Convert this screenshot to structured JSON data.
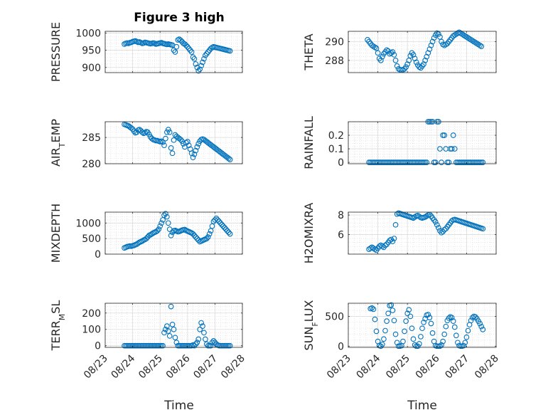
{
  "title": "Figure 3 high",
  "marker_color": "#0072BD",
  "grid": true,
  "x_axis": {
    "label": "Time",
    "range": [
      "08/23",
      "08/28"
    ],
    "ticks": [
      "08/23",
      "08/24",
      "08/25",
      "08/26",
      "08/27",
      "08/28"
    ]
  },
  "chart_data": [
    {
      "type": "scatter",
      "ylabel": "PRESSURE",
      "ylim": [
        885,
        1005
      ],
      "yticks": [
        "900",
        "950",
        "1000"
      ],
      "ytick_values": [
        900,
        950,
        1000
      ],
      "x": [
        0.7,
        0.75,
        0.8,
        0.85,
        0.9,
        0.95,
        1.0,
        1.05,
        1.1,
        1.15,
        1.2,
        1.25,
        1.3,
        1.35,
        1.4,
        1.45,
        1.5,
        1.55,
        1.6,
        1.65,
        1.7,
        1.75,
        1.8,
        1.85,
        1.9,
        1.95,
        2.0,
        2.05,
        2.1,
        2.15,
        2.2,
        2.25,
        2.3,
        2.35,
        2.4,
        2.45,
        2.5,
        2.55,
        2.6,
        2.65,
        2.7,
        2.75,
        2.8,
        2.85,
        2.9,
        2.95,
        3.0,
        3.05,
        3.1,
        3.15,
        3.2,
        3.25,
        3.3,
        3.35,
        3.4,
        3.45,
        3.5,
        3.55,
        3.6,
        3.65,
        3.7,
        3.75,
        3.8,
        3.85,
        3.9,
        3.95,
        4.0,
        4.05,
        4.1,
        4.15,
        4.2,
        4.25,
        4.3,
        4.35,
        4.4,
        4.45,
        4.5,
        4.55
      ],
      "y": [
        968,
        970,
        971,
        970,
        972,
        973,
        975,
        976,
        977,
        975,
        973,
        974,
        972,
        970,
        971,
        973,
        972,
        971,
        970,
        969,
        970,
        971,
        970,
        968,
        969,
        970,
        971,
        972,
        970,
        969,
        968,
        967,
        968,
        967,
        966,
        965,
        950,
        945,
        960,
        980,
        982,
        979,
        975,
        970,
        968,
        964,
        960,
        955,
        950,
        945,
        930,
        925,
        910,
        900,
        890,
        895,
        905,
        915,
        925,
        935,
        940,
        945,
        950,
        955,
        958,
        960,
        959,
        958,
        957,
        956,
        955,
        954,
        953,
        952,
        951,
        950,
        949,
        948
      ]
    },
    {
      "type": "scatter",
      "ylabel": "THETA",
      "ylim": [
        286.7,
        291.1
      ],
      "yticks": [
        "288",
        "290"
      ],
      "ytick_values": [
        288,
        290
      ],
      "x": [
        0.65,
        0.7,
        0.75,
        0.8,
        0.85,
        0.9,
        0.95,
        1.0,
        1.05,
        1.1,
        1.15,
        1.2,
        1.25,
        1.3,
        1.35,
        1.4,
        1.45,
        1.5,
        1.55,
        1.6,
        1.65,
        1.7,
        1.75,
        1.8,
        1.85,
        1.9,
        1.95,
        2.0,
        2.05,
        2.1,
        2.15,
        2.2,
        2.25,
        2.3,
        2.35,
        2.4,
        2.45,
        2.5,
        2.55,
        2.6,
        2.65,
        2.7,
        2.75,
        2.8,
        2.85,
        2.9,
        2.95,
        3.0,
        3.05,
        3.1,
        3.15,
        3.2,
        3.25,
        3.3,
        3.35,
        3.4,
        3.45,
        3.5,
        3.55,
        3.6,
        3.65,
        3.7,
        3.75,
        3.8,
        3.85,
        3.9,
        3.95,
        4.0,
        4.05,
        4.1,
        4.15,
        4.2,
        4.25,
        4.3,
        4.35,
        4.4,
        4.45,
        4.5
      ],
      "y": [
        290.2,
        290.0,
        289.8,
        289.6,
        289.5,
        289.4,
        289.3,
        288.8,
        288.2,
        288.0,
        288.4,
        288.7,
        288.9,
        289.1,
        289.0,
        288.7,
        288.8,
        288.9,
        288.6,
        288.0,
        287.4,
        287.1,
        287.0,
        287.0,
        287.0,
        287.1,
        287.3,
        287.6,
        288.0,
        288.5,
        288.8,
        288.6,
        288.2,
        287.8,
        287.5,
        287.3,
        287.2,
        287.4,
        287.6,
        288.0,
        288.4,
        288.8,
        289.2,
        289.6,
        290.0,
        290.4,
        290.7,
        290.9,
        290.8,
        290.5,
        290.0,
        289.7,
        289.6,
        289.7,
        289.8,
        290.0,
        290.2,
        290.4,
        290.6,
        290.7,
        290.8,
        290.9,
        291.0,
        290.9,
        290.8,
        290.7,
        290.6,
        290.5,
        290.4,
        290.3,
        290.2,
        290.1,
        290.0,
        289.9,
        289.8,
        289.7,
        289.6,
        289.5
      ]
    },
    {
      "type": "scatter",
      "ylabel": "AIR_TEMP",
      "ylim": [
        280,
        288
      ],
      "yticks": [
        "280",
        "285"
      ],
      "ytick_values": [
        280,
        285
      ],
      "x": [
        0.7,
        0.75,
        0.8,
        0.85,
        0.9,
        0.95,
        1.0,
        1.05,
        1.1,
        1.15,
        1.2,
        1.25,
        1.3,
        1.35,
        1.4,
        1.45,
        1.5,
        1.55,
        1.6,
        1.65,
        1.7,
        1.75,
        1.8,
        1.85,
        1.9,
        1.95,
        2.0,
        2.05,
        2.1,
        2.15,
        2.2,
        2.25,
        2.3,
        2.35,
        2.4,
        2.45,
        2.5,
        2.55,
        2.6,
        2.65,
        2.7,
        2.75,
        2.8,
        2.85,
        2.9,
        2.95,
        3.0,
        3.05,
        3.1,
        3.15,
        3.2,
        3.25,
        3.3,
        3.35,
        3.4,
        3.45,
        3.5,
        3.55,
        3.6,
        3.65,
        3.7,
        3.75,
        3.8,
        3.85,
        3.9,
        3.95,
        4.0,
        4.05,
        4.1,
        4.15,
        4.2,
        4.25,
        4.3,
        4.35,
        4.4,
        4.45,
        4.5,
        4.55
      ],
      "y": [
        287.5,
        287.4,
        287.3,
        287.2,
        287.0,
        286.8,
        286.6,
        286.2,
        285.9,
        286.0,
        286.4,
        286.5,
        286.3,
        286.0,
        285.8,
        285.9,
        286.1,
        286.0,
        285.6,
        285.1,
        284.8,
        284.6,
        284.5,
        284.4,
        284.4,
        284.3,
        284.2,
        284.3,
        284.1,
        283.5,
        284.8,
        286.0,
        286.5,
        286.0,
        283.0,
        282.0,
        284.5,
        285.5,
        285.2,
        285.0,
        284.8,
        284.6,
        284.3,
        283.8,
        283.2,
        284.0,
        284.2,
        283.5,
        282.8,
        282.0,
        281.2,
        281.8,
        282.5,
        283.2,
        283.8,
        284.3,
        284.6,
        284.7,
        284.6,
        284.4,
        284.2,
        284.0,
        283.8,
        283.6,
        283.4,
        283.2,
        283.0,
        282.8,
        282.6,
        282.4,
        282.2,
        282.0,
        281.8,
        281.6,
        281.4,
        281.2,
        281.0,
        280.8
      ]
    },
    {
      "type": "scatter",
      "ylabel": "RAINFALL",
      "ylim": [
        -0.01,
        0.3
      ],
      "yticks": [
        "0",
        "0.1",
        "0.2"
      ],
      "ytick_values": [
        0,
        0.1,
        0.2
      ],
      "x": [
        0.7,
        0.75,
        0.8,
        0.85,
        0.9,
        0.95,
        1.0,
        1.05,
        1.1,
        1.15,
        1.2,
        1.25,
        1.3,
        1.35,
        1.4,
        1.45,
        1.5,
        1.55,
        1.6,
        1.65,
        1.7,
        1.75,
        1.8,
        1.85,
        1.9,
        1.95,
        2.0,
        2.05,
        2.1,
        2.15,
        2.2,
        2.25,
        2.3,
        2.35,
        2.4,
        2.45,
        2.5,
        2.55,
        2.6,
        2.65,
        2.7,
        2.75,
        2.8,
        2.85,
        2.9,
        2.95,
        3.0,
        3.05,
        3.1,
        3.15,
        3.2,
        3.25,
        3.3,
        3.35,
        3.4,
        3.45,
        3.5,
        3.55,
        3.6,
        3.65,
        3.7,
        3.75,
        3.8,
        3.85,
        3.9,
        3.95,
        4.0,
        4.05,
        4.1,
        4.15,
        4.2,
        4.25,
        4.3,
        4.35,
        4.4,
        4.45,
        4.5,
        4.55
      ],
      "y": [
        0,
        0,
        0,
        0,
        0,
        0,
        0,
        0,
        0,
        0,
        0,
        0,
        0,
        0,
        0,
        0,
        0,
        0,
        0,
        0,
        0,
        0,
        0,
        0,
        0,
        0,
        0,
        0,
        0,
        0,
        0,
        0,
        0,
        0,
        0,
        0,
        0,
        0,
        0,
        0,
        0.3,
        0.3,
        0.3,
        0.3,
        0,
        0,
        0.3,
        0.3,
        0.1,
        0,
        0.2,
        0.2,
        0.1,
        0,
        0,
        0.1,
        0.1,
        0.2,
        0.1,
        0,
        0,
        0,
        0,
        0,
        0,
        0,
        0,
        0,
        0,
        0,
        0,
        0,
        0,
        0,
        0,
        0,
        0,
        0
      ]
    },
    {
      "type": "scatter",
      "ylabel": "MIXDEPTH",
      "ylim": [
        0,
        1350
      ],
      "yticks": [
        "0",
        "500",
        "1000"
      ],
      "ytick_values": [
        0,
        500,
        1000
      ],
      "x": [
        0.7,
        0.75,
        0.8,
        0.85,
        0.9,
        0.95,
        1.0,
        1.05,
        1.1,
        1.15,
        1.2,
        1.25,
        1.3,
        1.35,
        1.4,
        1.45,
        1.5,
        1.55,
        1.6,
        1.65,
        1.7,
        1.75,
        1.8,
        1.85,
        1.9,
        1.95,
        2.0,
        2.05,
        2.1,
        2.15,
        2.2,
        2.25,
        2.3,
        2.35,
        2.4,
        2.45,
        2.5,
        2.55,
        2.6,
        2.65,
        2.7,
        2.75,
        2.8,
        2.85,
        2.9,
        2.95,
        3.0,
        3.05,
        3.1,
        3.15,
        3.2,
        3.25,
        3.3,
        3.35,
        3.4,
        3.45,
        3.5,
        3.55,
        3.6,
        3.65,
        3.7,
        3.75,
        3.8,
        3.85,
        3.9,
        3.95,
        4.0,
        4.05,
        4.1,
        4.15,
        4.2,
        4.25,
        4.3,
        4.35,
        4.4,
        4.45,
        4.5,
        4.55
      ],
      "y": [
        200,
        220,
        240,
        250,
        260,
        255,
        270,
        280,
        300,
        320,
        350,
        380,
        400,
        420,
        450,
        470,
        500,
        550,
        600,
        620,
        650,
        680,
        700,
        720,
        750,
        800,
        900,
        1000,
        1100,
        1250,
        1300,
        1200,
        1000,
        800,
        600,
        700,
        750,
        760,
        740,
        720,
        730,
        750,
        770,
        780,
        790,
        760,
        740,
        720,
        700,
        680,
        650,
        600,
        550,
        500,
        450,
        400,
        420,
        440,
        460,
        480,
        500,
        550,
        650,
        750,
        900,
        1050,
        1100,
        1150,
        1100,
        1050,
        1000,
        950,
        900,
        850,
        800,
        750,
        700,
        650
      ]
    },
    {
      "type": "scatter",
      "ylabel": "H2OMIXRA",
      "ylim": [
        4.0,
        8.3
      ],
      "yticks": [
        "6",
        "8"
      ],
      "ytick_values": [
        6,
        8
      ],
      "x": [
        0.7,
        0.75,
        0.8,
        0.85,
        0.9,
        0.95,
        1.0,
        1.05,
        1.1,
        1.15,
        1.2,
        1.25,
        1.3,
        1.35,
        1.4,
        1.45,
        1.5,
        1.55,
        1.6,
        1.65,
        1.7,
        1.75,
        1.8,
        1.85,
        1.9,
        1.95,
        2.0,
        2.05,
        2.1,
        2.15,
        2.2,
        2.25,
        2.3,
        2.35,
        2.4,
        2.45,
        2.5,
        2.55,
        2.6,
        2.65,
        2.7,
        2.75,
        2.8,
        2.85,
        2.9,
        2.95,
        3.0,
        3.05,
        3.1,
        3.15,
        3.2,
        3.25,
        3.3,
        3.35,
        3.4,
        3.45,
        3.5,
        3.55,
        3.6,
        3.65,
        3.7,
        3.75,
        3.8,
        3.85,
        3.9,
        3.95,
        4.0,
        4.05,
        4.1,
        4.15,
        4.2,
        4.25,
        4.3,
        4.35,
        4.4,
        4.45,
        4.5,
        4.55
      ],
      "y": [
        4.5,
        4.6,
        4.7,
        4.6,
        4.5,
        4.4,
        4.6,
        4.8,
        4.9,
        4.8,
        4.7,
        4.9,
        5.0,
        5.2,
        5.4,
        5.5,
        5.3,
        5.6,
        7.0,
        8.1,
        8.2,
        8.15,
        8.1,
        8.05,
        8.0,
        7.95,
        7.9,
        7.85,
        7.8,
        7.75,
        7.7,
        7.8,
        7.9,
        7.95,
        7.85,
        7.75,
        7.7,
        7.75,
        7.8,
        7.9,
        8.0,
        8.05,
        7.9,
        7.7,
        7.5,
        7.3,
        7.0,
        6.7,
        6.4,
        6.2,
        6.3,
        6.5,
        6.6,
        6.8,
        7.0,
        7.2,
        7.4,
        7.5,
        7.55,
        7.5,
        7.45,
        7.4,
        7.35,
        7.3,
        7.25,
        7.2,
        7.15,
        7.1,
        7.05,
        7.0,
        6.95,
        6.9,
        6.85,
        6.8,
        6.75,
        6.7,
        6.65,
        6.6
      ]
    },
    {
      "type": "scatter",
      "ylabel": "TERR_MSL",
      "ylim": [
        -10,
        260
      ],
      "yticks": [
        "0",
        "100",
        "200"
      ],
      "ytick_values": [
        0,
        100,
        200
      ],
      "x": [
        0.7,
        0.75,
        0.8,
        0.85,
        0.9,
        0.95,
        1.0,
        1.05,
        1.1,
        1.15,
        1.2,
        1.25,
        1.3,
        1.35,
        1.4,
        1.45,
        1.5,
        1.55,
        1.6,
        1.65,
        1.7,
        1.75,
        1.8,
        1.85,
        1.9,
        1.95,
        2.0,
        2.05,
        2.1,
        2.15,
        2.2,
        2.25,
        2.3,
        2.35,
        2.4,
        2.45,
        2.5,
        2.55,
        2.6,
        2.65,
        2.7,
        2.75,
        2.8,
        2.85,
        2.9,
        2.95,
        3.0,
        3.05,
        3.1,
        3.15,
        3.2,
        3.25,
        3.3,
        3.35,
        3.4,
        3.45,
        3.5,
        3.55,
        3.6,
        3.65,
        3.7,
        3.75,
        3.8,
        3.85,
        3.9,
        3.95,
        4.0,
        4.05,
        4.1,
        4.15,
        4.2,
        4.25,
        4.3,
        4.35,
        4.4,
        4.45,
        4.5,
        4.55
      ],
      "y": [
        0,
        0,
        0,
        0,
        0,
        0,
        0,
        0,
        0,
        0,
        0,
        0,
        0,
        0,
        0,
        0,
        0,
        0,
        0,
        0,
        0,
        0,
        0,
        0,
        0,
        0,
        0,
        0,
        0,
        80,
        100,
        120,
        90,
        60,
        240,
        130,
        100,
        50,
        20,
        0,
        0,
        0,
        0,
        0,
        0,
        0,
        0,
        0,
        0,
        0,
        5,
        0,
        10,
        20,
        40,
        100,
        140,
        120,
        80,
        40,
        10,
        0,
        0,
        0,
        20,
        30,
        20,
        10,
        5,
        0,
        0,
        0,
        0,
        0,
        0,
        0,
        0,
        0
      ]
    },
    {
      "type": "scatter",
      "ylabel": "SUN_FLUX",
      "ylim": [
        -20,
        720
      ],
      "yticks": [
        "0",
        "500"
      ],
      "ytick_values": [
        0,
        500
      ],
      "x": [
        0.75,
        0.8,
        0.85,
        0.9,
        0.95,
        1.0,
        1.05,
        1.1,
        1.15,
        1.2,
        1.25,
        1.3,
        1.35,
        1.4,
        1.45,
        1.5,
        1.55,
        1.6,
        1.65,
        1.7,
        1.75,
        1.8,
        1.85,
        1.9,
        1.95,
        2.0,
        2.05,
        2.1,
        2.15,
        2.2,
        2.25,
        2.3,
        2.35,
        2.4,
        2.45,
        2.5,
        2.55,
        2.6,
        2.65,
        2.7,
        2.75,
        2.8,
        2.85,
        2.9,
        2.95,
        3.0,
        3.05,
        3.1,
        3.15,
        3.2,
        3.25,
        3.3,
        3.35,
        3.4,
        3.45,
        3.5,
        3.55,
        3.6,
        3.65,
        3.7,
        3.75,
        3.8,
        3.85,
        3.9,
        3.95,
        4.0,
        4.05,
        4.1,
        4.15,
        4.2,
        4.25,
        4.3,
        4.35,
        4.4,
        4.45,
        4.5,
        4.55
      ],
      "y": [
        630,
        640,
        620,
        450,
        250,
        80,
        10,
        0,
        30,
        120,
        260,
        420,
        550,
        680,
        690,
        600,
        430,
        200,
        60,
        0,
        0,
        10,
        80,
        250,
        420,
        550,
        610,
        500,
        300,
        120,
        20,
        0,
        0,
        40,
        160,
        300,
        400,
        460,
        520,
        530,
        480,
        380,
        220,
        80,
        10,
        0,
        0,
        0,
        20,
        80,
        200,
        330,
        430,
        470,
        490,
        480,
        420,
        320,
        180,
        60,
        10,
        0,
        0,
        10,
        60,
        150,
        260,
        360,
        430,
        480,
        500,
        490,
        460,
        420,
        380,
        330,
        280
      ]
    }
  ]
}
